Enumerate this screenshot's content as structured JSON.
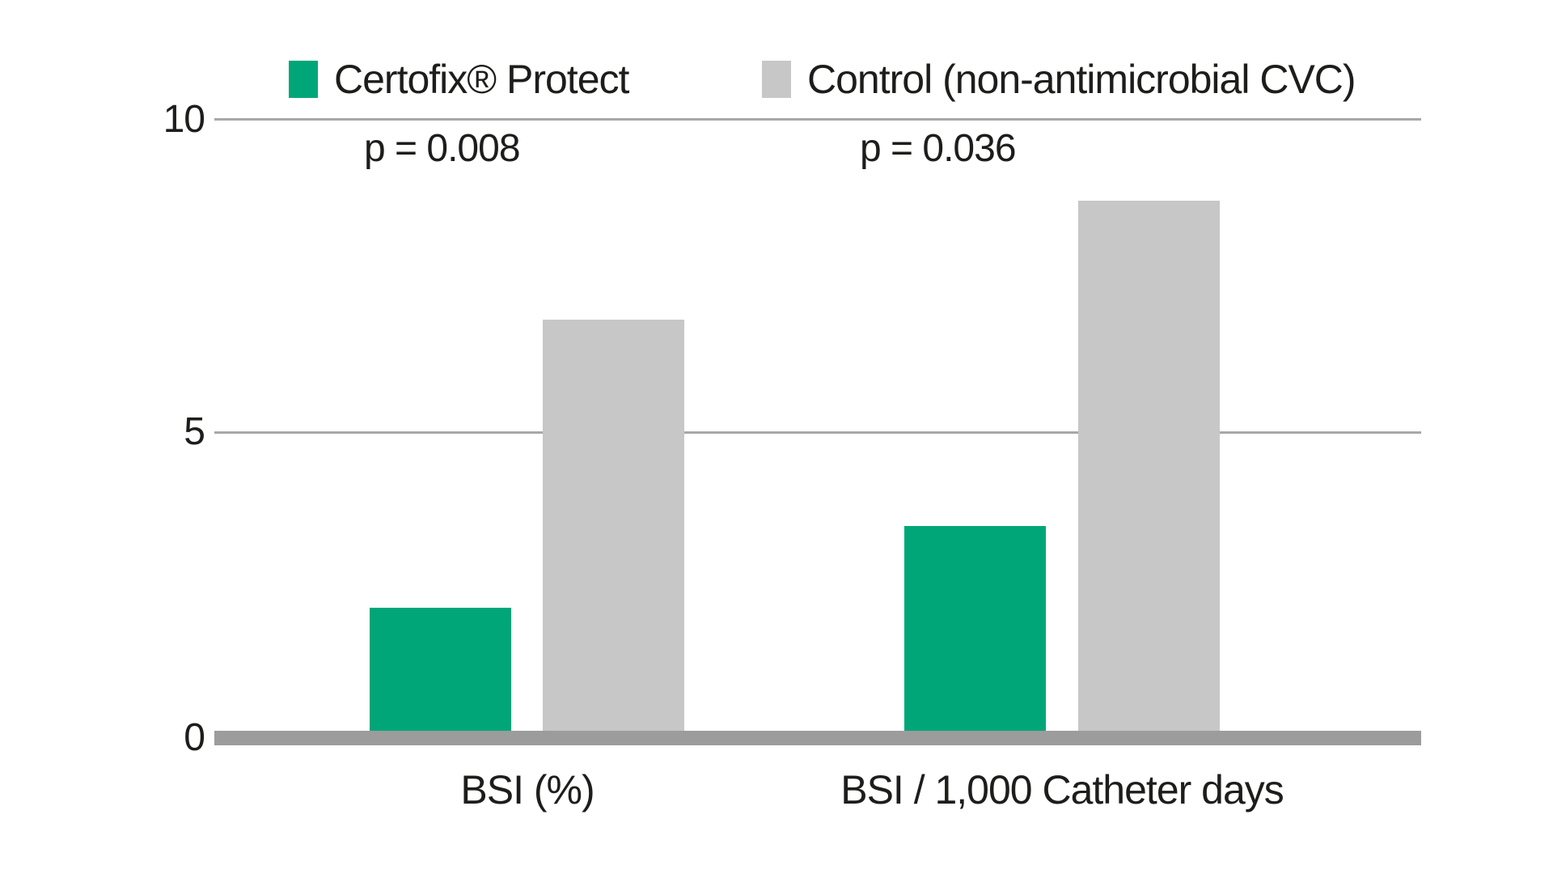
{
  "chart_data": {
    "type": "bar",
    "title": "",
    "categories": [
      "BSI (%)",
      "BSI / 1,000 Catheter days"
    ],
    "series": [
      {
        "name": "Certofix® Protect",
        "color": "#00a678",
        "values": [
          2.2,
          3.5
        ]
      },
      {
        "name": "Control (non-antimicrobial CVC)",
        "color": "#c7c7c7",
        "values": [
          6.8,
          8.7
        ]
      }
    ],
    "p_values": [
      "p = 0.008",
      "p = 0.036"
    ],
    "y_ticks": [
      "10",
      "5",
      "0"
    ],
    "ylim": [
      0,
      10
    ],
    "grid": true,
    "legend_position": "top",
    "axis_color": "#9c9c9c",
    "gridline_color": "#a8a8a8",
    "text_color": "#1d1d1b",
    "background": "#ffffff"
  }
}
